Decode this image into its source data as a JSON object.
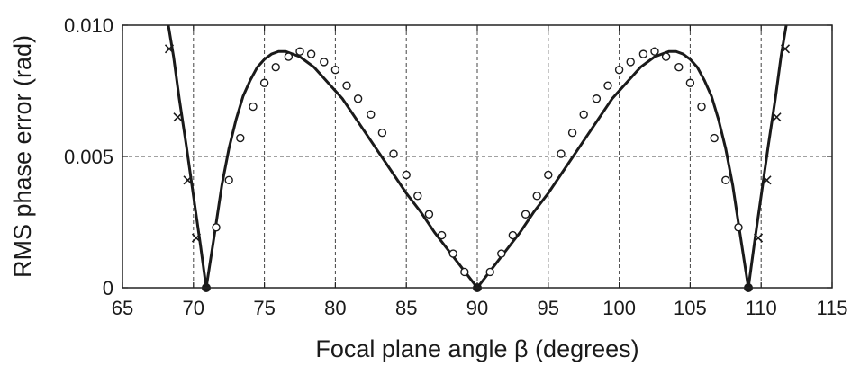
{
  "chart_data": {
    "type": "line",
    "xlabel": "Focal plane angle β (degrees)",
    "ylabel": "RMS phase error (rad)",
    "xlim": [
      65,
      115
    ],
    "ylim": [
      0,
      0.01
    ],
    "x_ticks": [
      65,
      70,
      75,
      80,
      85,
      90,
      95,
      100,
      105,
      110,
      115
    ],
    "x_tick_labels": [
      "65",
      "70",
      "75",
      "80",
      "85",
      "90",
      "95",
      "100",
      "105",
      "110",
      "115"
    ],
    "y_ticks": [
      0,
      0.005,
      0.01
    ],
    "y_tick_labels": [
      "0",
      "0.005",
      "0.010"
    ],
    "grid": true,
    "series": [
      {
        "style": "solid-line",
        "x": [
          68.2,
          68.6,
          69.0,
          69.5,
          70.0,
          70.5,
          70.9,
          71.5,
          72.0,
          72.5,
          73.0,
          73.5,
          74.0,
          74.5,
          75.0,
          75.5,
          76.0,
          76.5,
          77.0,
          77.5,
          78.0,
          78.5,
          79.0,
          79.5,
          80.0,
          80.5,
          81.0,
          82.0,
          83.0,
          84.0,
          85.0,
          86.0,
          87.0,
          88.0,
          89.0,
          90.0,
          91.0,
          92.0,
          93.0,
          94.0,
          95.0,
          96.0,
          97.0,
          98.0,
          99.0,
          99.5,
          100.0,
          100.5,
          101.0,
          101.5,
          102.0,
          102.5,
          103.0,
          103.5,
          104.0,
          104.5,
          105.0,
          105.5,
          106.0,
          106.5,
          107.0,
          107.5,
          108.0,
          108.5,
          109.1,
          109.5,
          110.0,
          110.5,
          111.0,
          111.4,
          111.8
        ],
        "y": [
          0.0101,
          0.0088,
          0.0072,
          0.0054,
          0.0035,
          0.0016,
          0.0,
          0.0021,
          0.0039,
          0.0053,
          0.0064,
          0.0073,
          0.0079,
          0.0084,
          0.0087,
          0.0089,
          0.009,
          0.009,
          0.0089,
          0.0088,
          0.0086,
          0.0084,
          0.0081,
          0.0078,
          0.0075,
          0.0072,
          0.0068,
          0.006,
          0.0052,
          0.0044,
          0.0036,
          0.0029,
          0.0021,
          0.0014,
          0.0007,
          0.0,
          0.0007,
          0.0014,
          0.0021,
          0.0029,
          0.0036,
          0.0044,
          0.0052,
          0.006,
          0.0068,
          0.0072,
          0.0075,
          0.0078,
          0.0081,
          0.0084,
          0.0086,
          0.0088,
          0.0089,
          0.009,
          0.009,
          0.0089,
          0.0087,
          0.0084,
          0.0079,
          0.0073,
          0.0064,
          0.0053,
          0.0039,
          0.0021,
          0.0,
          0.0016,
          0.0035,
          0.0054,
          0.0072,
          0.0088,
          0.0101
        ]
      },
      {
        "style": "open-circle-markers",
        "x": [
          71.6,
          72.5,
          73.3,
          74.2,
          75.0,
          75.8,
          76.7,
          77.5,
          78.3,
          79.2,
          80.0,
          80.8,
          81.6,
          82.5,
          83.3,
          84.1,
          85.0,
          85.8,
          86.6,
          87.5,
          88.3,
          89.1,
          90.9,
          91.7,
          92.5,
          93.4,
          94.2,
          95.0,
          95.9,
          96.7,
          97.5,
          98.4,
          99.2,
          100.0,
          100.8,
          101.7,
          102.5,
          103.3,
          104.2,
          105.0,
          105.8,
          106.7,
          107.5,
          108.4
        ],
        "y": [
          0.0023,
          0.0041,
          0.0057,
          0.0069,
          0.0078,
          0.0084,
          0.0088,
          0.009,
          0.0089,
          0.0086,
          0.0083,
          0.0077,
          0.0072,
          0.0066,
          0.0059,
          0.0051,
          0.0043,
          0.0035,
          0.0028,
          0.002,
          0.0013,
          0.0006,
          0.0006,
          0.0013,
          0.002,
          0.0028,
          0.0035,
          0.0043,
          0.0051,
          0.0059,
          0.0066,
          0.0072,
          0.0077,
          0.0083,
          0.0086,
          0.0089,
          0.009,
          0.0088,
          0.0084,
          0.0078,
          0.0069,
          0.0057,
          0.0041,
          0.0023
        ]
      },
      {
        "style": "x-markers",
        "x": [
          68.3,
          68.9,
          69.6,
          70.2,
          109.8,
          110.4,
          111.1,
          111.7
        ],
        "y": [
          0.0091,
          0.0065,
          0.0041,
          0.0019,
          0.0019,
          0.0041,
          0.0065,
          0.0091
        ]
      },
      {
        "style": "filled-dot-markers",
        "x": [
          70.9,
          90.0,
          109.1
        ],
        "y": [
          0,
          0,
          0
        ]
      }
    ]
  }
}
